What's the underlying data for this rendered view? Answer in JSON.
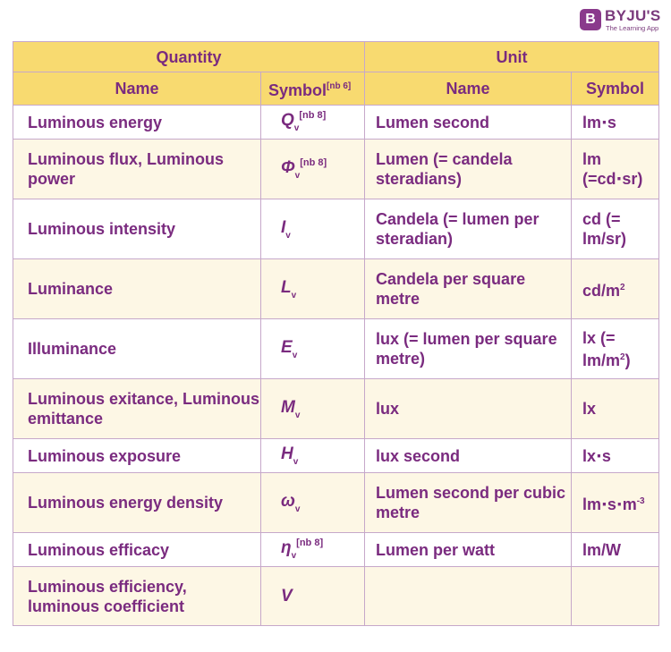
{
  "brand": {
    "badge": "B",
    "name": "BYJU'S",
    "tagline": "The Learning App"
  },
  "header": {
    "quantity": "Quantity",
    "unit": "Unit",
    "name": "Name",
    "symbol": "Symbol",
    "symbol_note": "[nb 6]",
    "unit_name": "Name",
    "unit_symbol": "Symbol"
  },
  "rows": [
    {
      "name": "Luminous energy",
      "sym": "Q",
      "sub": "v",
      "note": "[nb 8]",
      "unit": "Lumen second",
      "usym": "lm⋅s"
    },
    {
      "name": "Luminous flux, Luminous power",
      "sym": "Φ",
      "sub": "v",
      "note": "[nb 8]",
      "unit": "Lumen (= candela steradians)",
      "usym": "lm (=cd⋅sr)"
    },
    {
      "name": "Luminous intensity",
      "sym": "I",
      "sub": "v",
      "note": "",
      "unit": "Candela (= lumen per steradian)",
      "usym": "cd (= lm/sr)"
    },
    {
      "name": "Luminance",
      "sym": "L",
      "sub": "v",
      "note": "",
      "unit": "Candela per square metre",
      "usym": "cd/m",
      "usym_pow": "2"
    },
    {
      "name": "Illuminance",
      "sym": "E",
      "sub": "v",
      "note": "",
      "unit": "lux (= lumen per square metre)",
      "usym": "lx (= lm/m",
      "usym_pow": "2",
      "usym_tail": ")"
    },
    {
      "name": "Luminous exitance, Luminous emittance",
      "sym": "M",
      "sub": "v",
      "note": "",
      "unit": "lux",
      "usym": "lx"
    },
    {
      "name": "Luminous exposure",
      "sym": "H",
      "sub": "v",
      "note": "",
      "unit": "lux second",
      "usym": "lx⋅s"
    },
    {
      "name": "Luminous energy density",
      "sym": "ω",
      "sub": "v",
      "note": "",
      "unit": "Lumen second per cubic metre",
      "usym": "lm⋅s⋅m",
      "usym_pow": "-3"
    },
    {
      "name": "Luminous efficacy",
      "sym": "η",
      "sub": "v",
      "note": "[nb 8]",
      "unit": "Lumen per watt",
      "usym": "lm/W"
    },
    {
      "name": "Luminous efficiency, luminous coefficient",
      "sym": "V",
      "sub": "",
      "note": "",
      "unit": "",
      "usym": ""
    }
  ]
}
